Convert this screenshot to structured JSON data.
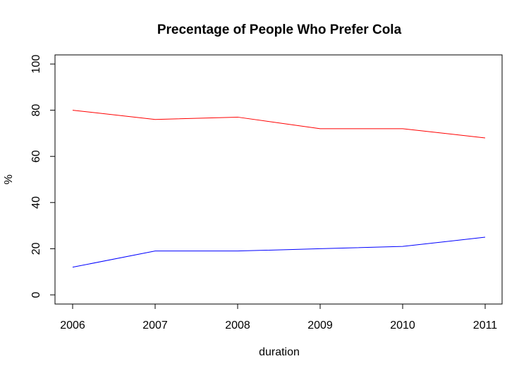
{
  "chart_data": {
    "type": "line",
    "title": "Precentage of People Who Prefer  Cola",
    "xlabel": "duration",
    "ylabel": "%",
    "x": [
      2006,
      2007,
      2008,
      2009,
      2010,
      2011
    ],
    "xticks": [
      "2006",
      "2007",
      "2008",
      "2009",
      "2010",
      "2011"
    ],
    "yticks": [
      "0",
      "20",
      "40",
      "60",
      "80",
      "100"
    ],
    "ylim": [
      0,
      100
    ],
    "grid": false,
    "series": [
      {
        "values": [
          80,
          76,
          77,
          72,
          72,
          68
        ],
        "color": "#ff0000"
      },
      {
        "values": [
          12,
          19,
          19,
          20,
          21,
          25
        ],
        "color": "#0000ff"
      }
    ]
  }
}
